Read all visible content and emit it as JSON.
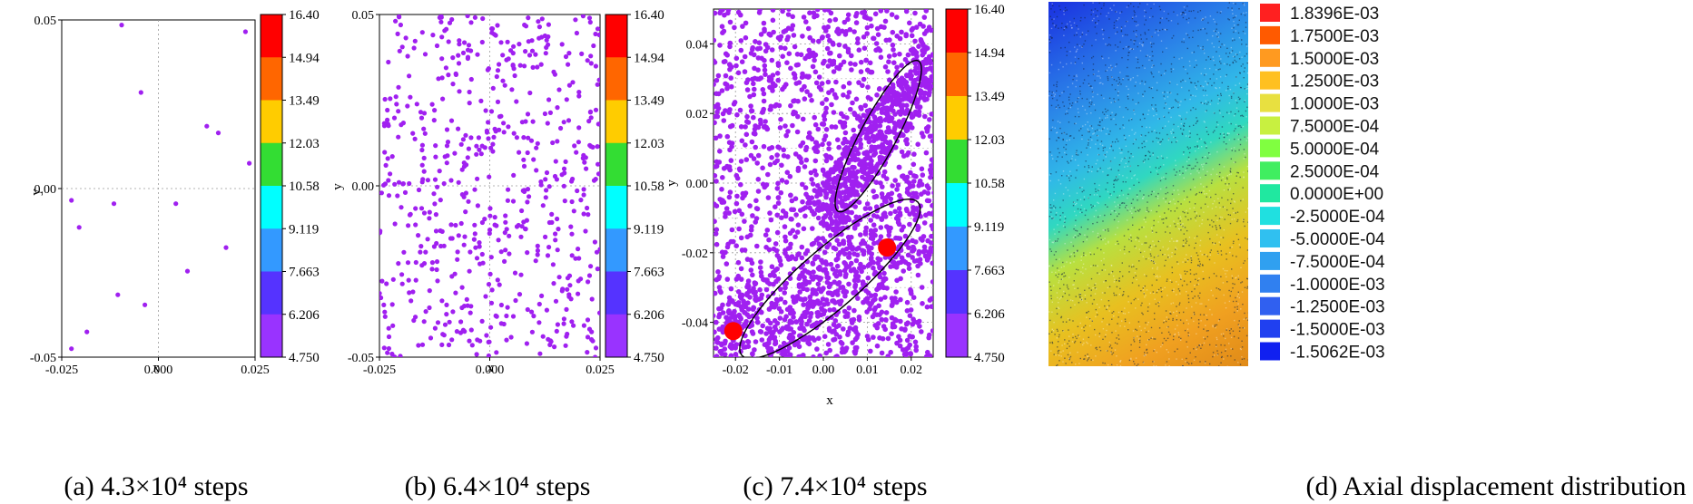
{
  "chart_data": [
    {
      "type": "scatter",
      "caption": "(a) 4.3×10⁴ steps",
      "xlabel": "x",
      "ylabel": "y",
      "xlim": [
        -0.025,
        0.025
      ],
      "ylim": [
        -0.05,
        0.05
      ],
      "x_ticks": [
        "-0.025",
        "0.000",
        "0.025"
      ],
      "y_ticks": [
        "0.05",
        "0.00",
        "-0.05"
      ],
      "point_color": "#a020f0",
      "points": [
        [
          -0.0095,
          0.0485
        ],
        [
          0.0225,
          0.0465
        ],
        [
          -0.0045,
          0.0285
        ],
        [
          0.0125,
          0.0185
        ],
        [
          0.0155,
          0.0165
        ],
        [
          0.0235,
          0.0075
        ],
        [
          -0.0225,
          -0.0035
        ],
        [
          -0.0115,
          -0.0045
        ],
        [
          0.0045,
          -0.0045
        ],
        [
          -0.0205,
          -0.0115
        ],
        [
          0.0175,
          -0.0175
        ],
        [
          0.0075,
          -0.0245
        ],
        [
          -0.0105,
          -0.0315
        ],
        [
          -0.0035,
          -0.0345
        ],
        [
          -0.0185,
          -0.0425
        ],
        [
          -0.0225,
          -0.0475
        ]
      ],
      "colorbar": {
        "labels": [
          "16.40",
          "14.94",
          "13.49",
          "12.03",
          "10.58",
          "9.119",
          "7.663",
          "6.206",
          "4.750"
        ],
        "colors": [
          "#ff0000",
          "#ff6600",
          "#ffcc00",
          "#ffff33",
          "#33dd33",
          "#00ffff",
          "#3399ff",
          "#5533ff",
          "#9933ff"
        ]
      }
    },
    {
      "type": "scatter",
      "caption": "(b) 6.4×10⁴ steps",
      "xlabel": "x",
      "ylabel": "y",
      "xlim": [
        -0.025,
        0.025
      ],
      "ylim": [
        -0.05,
        0.05
      ],
      "x_ticks": [
        "-0.025",
        "0.000",
        "0.025"
      ],
      "y_ticks": [
        "0.05",
        "0.00",
        "-0.05"
      ],
      "point_color": "#a020f0",
      "generated_points": {
        "count": 620,
        "distribution": "uniform",
        "seed": 11
      },
      "colorbar": {
        "labels": [
          "16.40",
          "14.94",
          "13.49",
          "12.03",
          "10.58",
          "9.119",
          "7.663",
          "6.206",
          "4.750"
        ],
        "colors": [
          "#ff0000",
          "#ff6600",
          "#ffcc00",
          "#ffff33",
          "#33dd33",
          "#00ffff",
          "#3399ff",
          "#5533ff",
          "#9933ff"
        ]
      }
    },
    {
      "type": "scatter",
      "caption": "(c) 7.4×10⁴ steps",
      "xlabel": "x",
      "ylabel": "y",
      "xlim": [
        -0.025,
        0.025
      ],
      "ylim": [
        -0.05,
        0.05
      ],
      "x_ticks": [
        "-0.02",
        "-0.01",
        "0.00",
        "0.01",
        "0.02"
      ],
      "y_ticks": [
        "0.04",
        "0.02",
        "0.00",
        "-0.02",
        "-0.04"
      ],
      "point_color": "#a020f0",
      "generated_points": {
        "count": 2600,
        "distribution": "dense-band",
        "seed": 23
      },
      "highlight_points": [
        [
          -0.0205,
          -0.0425
        ],
        [
          0.0145,
          -0.0185
        ]
      ],
      "highlight_color": "#ff0000",
      "ellipses": [
        {
          "center": [
            0.0125,
            0.0135
          ],
          "semi_major": 0.0245,
          "semi_minor": 0.0052,
          "angle_deg": 62
        },
        {
          "center": [
            0.0015,
            -0.0275
          ],
          "semi_major": 0.0335,
          "semi_minor": 0.0085,
          "angle_deg": 41
        }
      ],
      "colorbar": {
        "labels": [
          "16.40",
          "14.94",
          "13.49",
          "12.03",
          "10.58",
          "9.119",
          "7.663",
          "6.206",
          "4.750"
        ],
        "colors": [
          "#ff0000",
          "#ff6600",
          "#ffcc00",
          "#ffff33",
          "#33dd33",
          "#00ffff",
          "#3399ff",
          "#5533ff",
          "#9933ff"
        ]
      }
    },
    {
      "type": "heatmap",
      "caption": "(d) Axial displacement distribution",
      "legend": {
        "labels": [
          "1.8396E-03",
          "1.7500E-03",
          "1.5000E-03",
          "1.2500E-03",
          "1.0000E-03",
          "7.5000E-04",
          "5.0000E-04",
          "2.5000E-04",
          "0.0000E+00",
          "-2.5000E-04",
          "-5.0000E-04",
          "-7.5000E-04",
          "-1.0000E-03",
          "-1.2500E-03",
          "-1.5000E-03",
          "-1.5062E-03"
        ],
        "colors": [
          "#ff2020",
          "#ff5a00",
          "#ff9a20",
          "#ffc020",
          "#e8e040",
          "#c8f040",
          "#80ff40",
          "#40ee60",
          "#20e8a0",
          "#20e0e0",
          "#30c0f0",
          "#30a0f0",
          "#3080f0",
          "#3060f0",
          "#2040f0",
          "#1020f0"
        ]
      }
    }
  ]
}
